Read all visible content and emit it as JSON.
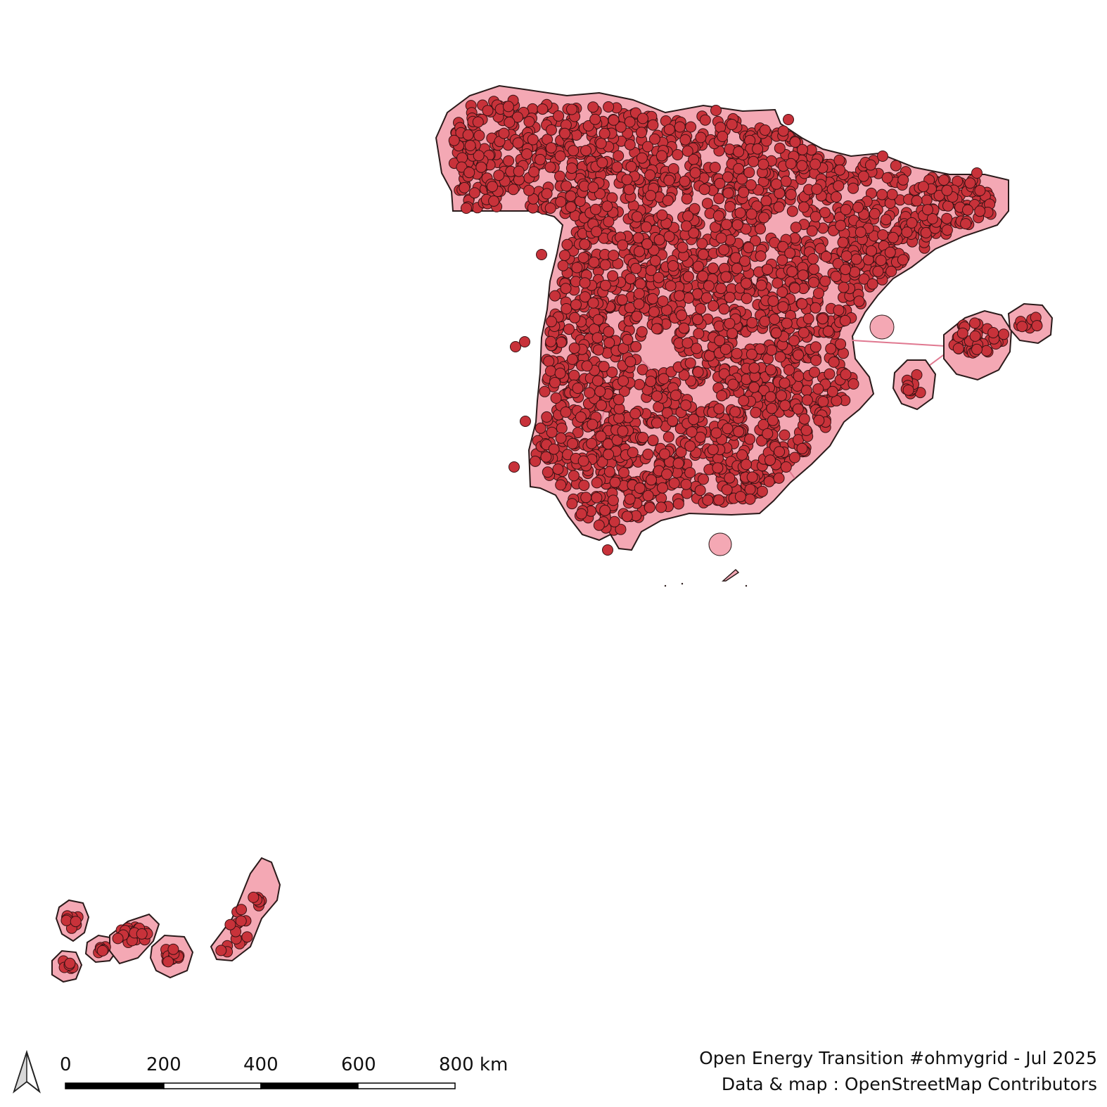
{
  "map": {
    "colors": {
      "buffer_fill": "#f4a8b4",
      "outline": "#2a1a1a",
      "point_fill": "#c8323a",
      "point_stroke": "#3a1214",
      "line": "#e07890"
    },
    "regions": [
      "Iberian Peninsula",
      "Balearic Islands",
      "Canary Islands",
      "Ceuta",
      "Melilla"
    ]
  },
  "north_arrow": {
    "icon": "north-arrow-icon"
  },
  "scale_bar": {
    "labels": [
      "0",
      "200",
      "400",
      "600",
      "800 km"
    ],
    "segment_colors": [
      "#000000",
      "#ffffff",
      "#000000",
      "#ffffff"
    ]
  },
  "credits": {
    "line1": "Open Energy Transition #ohmygrid - Jul 2025",
    "line2": "Data & map : OpenStreetMap Contributors"
  }
}
